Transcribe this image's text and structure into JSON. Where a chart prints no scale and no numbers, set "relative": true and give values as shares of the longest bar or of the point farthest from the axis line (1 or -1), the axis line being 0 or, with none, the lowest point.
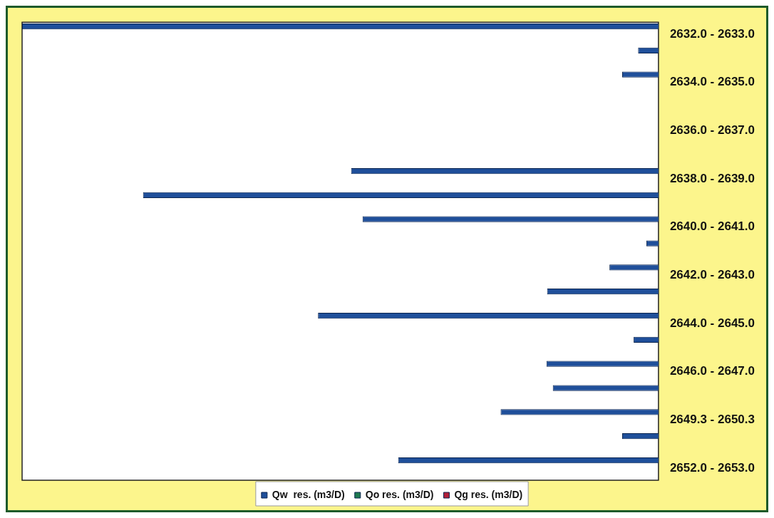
{
  "chart_data": {
    "type": "bar",
    "orientation": "horizontal",
    "relative": true,
    "legend": "bottom",
    "categories": [
      "2632.0 - 2633.0",
      null,
      "2634.0 - 2635.0",
      null,
      "2636.0 - 2637.0",
      null,
      "2638.0 - 2639.0",
      null,
      "2640.0 - 2641.0",
      null,
      "2642.0 - 2643.0",
      null,
      "2644.0 - 2645.0",
      null,
      "2646.0 - 2647.0",
      null,
      "2649.3 - 2650.3",
      null,
      "2652.0 - 2653.0"
    ],
    "series": [
      {
        "name": "Qw  res. (m3/D)",
        "color": "#1f4f9a",
        "values": [
          1,
          0.032,
          0.057,
          null,
          null,
          null,
          0.483,
          0.81,
          0.465,
          0.019,
          0.077,
          0.175,
          0.535,
          0.039,
          0.176,
          0.166,
          0.248,
          0.057,
          0.409
        ]
      },
      {
        "name": "Qo res. (m3/D)",
        "color": "#1e7a50",
        "values": [
          null,
          null,
          null,
          null,
          null,
          null,
          null,
          null,
          null,
          null,
          null,
          null,
          null,
          null,
          null,
          null,
          null,
          null,
          null
        ]
      },
      {
        "name": "Qg res. (m3/D)",
        "color": "#b0203a",
        "values": [
          null,
          null,
          null,
          null,
          null,
          null,
          null,
          null,
          null,
          null,
          null,
          null,
          null,
          null,
          null,
          null,
          null,
          null,
          null
        ]
      }
    ]
  }
}
